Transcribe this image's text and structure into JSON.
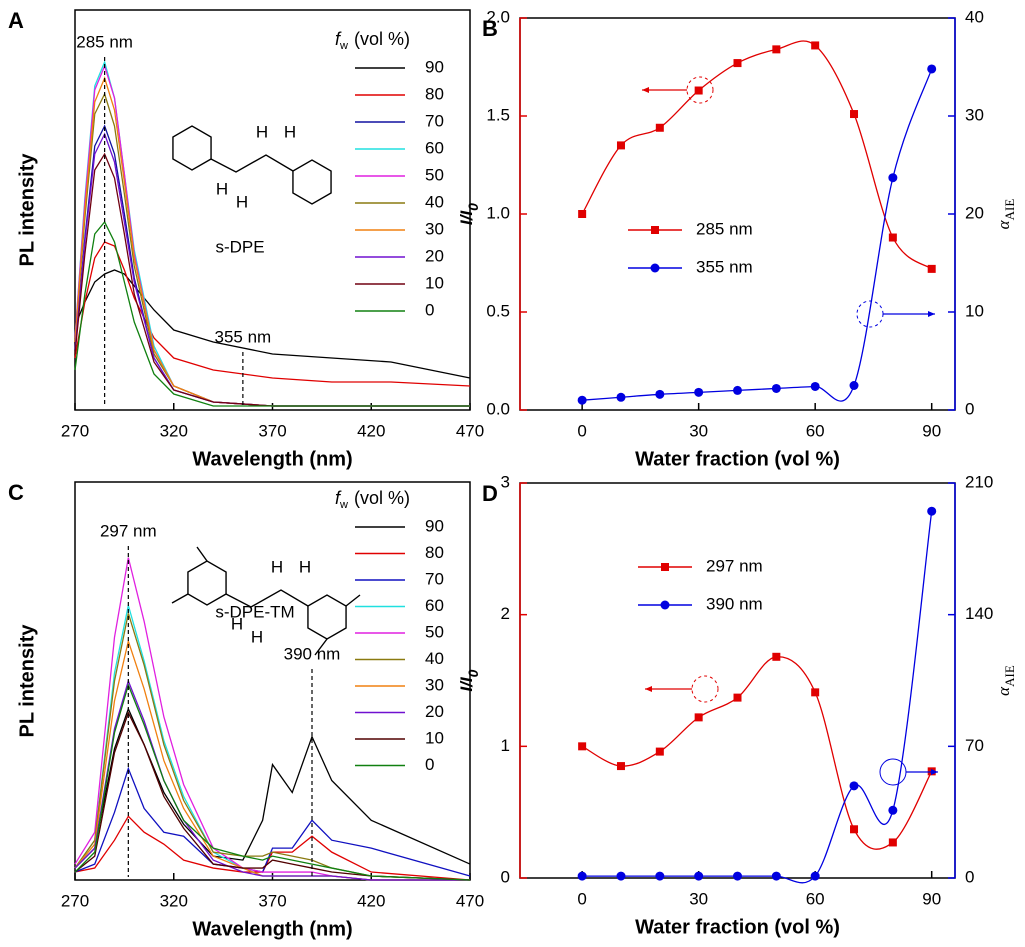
{
  "chart_data": [
    {
      "type": "line",
      "panel": "A",
      "x_label": "Wavelength (nm)",
      "y_label": "PL intensity",
      "x": [
        270,
        275,
        280,
        285,
        290,
        295,
        300,
        310,
        320,
        340,
        370,
        400,
        430,
        470
      ],
      "xlim": [
        270,
        470
      ],
      "xticks": [
        270,
        320,
        370,
        420,
        470
      ],
      "ylim": [
        0,
        100
      ],
      "legend_title": {
        "symbol": "f",
        "sub": "w",
        "unit": "(vol %)"
      },
      "annotations": [
        {
          "text": "285 nm",
          "x": 285
        },
        {
          "text": "355 nm",
          "x": 355
        }
      ],
      "molecule": "s-DPE",
      "structure_labels": [
        "H",
        "H",
        "H",
        "H"
      ],
      "series": [
        {
          "name": "90",
          "color": "#000000",
          "values": [
            21,
            27,
            32,
            34,
            35,
            34,
            31,
            25,
            20,
            17,
            14,
            13,
            12,
            8
          ]
        },
        {
          "name": "80",
          "color": "#e00000",
          "values": [
            13,
            27,
            38,
            42,
            41,
            35,
            28,
            18,
            13,
            10,
            8,
            7,
            7,
            6
          ]
        },
        {
          "name": "70",
          "color": "#1010a0",
          "values": [
            15,
            43,
            66,
            71,
            64,
            49,
            33,
            13,
            5,
            2,
            1,
            1,
            1,
            1
          ]
        },
        {
          "name": "60",
          "color": "#20e0e0",
          "values": [
            18,
            53,
            81,
            87,
            78,
            59,
            40,
            16,
            6,
            2,
            1,
            1,
            1,
            1
          ]
        },
        {
          "name": "50",
          "color": "#e020e0",
          "values": [
            18,
            52,
            80,
            86,
            78,
            59,
            39,
            15,
            6,
            2,
            1,
            1,
            1,
            1
          ]
        },
        {
          "name": "40",
          "color": "#8a7a10",
          "values": [
            17,
            48,
            74,
            79,
            71,
            54,
            36,
            14,
            6,
            2,
            1,
            1,
            1,
            1
          ]
        },
        {
          "name": "30",
          "color": "#f08010",
          "values": [
            17,
            50,
            77,
            83,
            75,
            57,
            38,
            15,
            6,
            2,
            1,
            1,
            1,
            1
          ]
        },
        {
          "name": "20",
          "color": "#7010d0",
          "values": [
            15,
            42,
            64,
            69,
            62,
            47,
            32,
            13,
            5,
            2,
            1,
            1,
            1,
            1
          ]
        },
        {
          "name": "10",
          "color": "#700010",
          "values": [
            14,
            39,
            60,
            64,
            58,
            44,
            29,
            12,
            5,
            2,
            1,
            1,
            1,
            1
          ]
        },
        {
          "name": "0",
          "color": "#108010",
          "values": [
            10,
            29,
            44,
            47,
            42,
            32,
            22,
            9,
            4,
            1,
            1,
            1,
            1,
            1
          ]
        }
      ]
    },
    {
      "type": "scatter",
      "panel": "B",
      "x_label": "Water fraction (vol %)",
      "y_label": "I/I",
      "y_label_sub": "0",
      "y2_label": "α",
      "y2_label_sub": "AIE",
      "x": [
        0,
        10,
        20,
        30,
        40,
        50,
        60,
        70,
        80,
        90
      ],
      "xlim": [
        -16,
        96
      ],
      "xticks": [
        0,
        30,
        60,
        90
      ],
      "ylim": [
        0,
        2
      ],
      "yticks": [
        {
          "value": 0,
          "label": "0.0"
        },
        {
          "value": 0.5,
          "label": "0.5"
        },
        {
          "value": 1,
          "label": "1.0"
        },
        {
          "value": 1.5,
          "label": "1.5"
        },
        {
          "value": 2,
          "label": "2.0"
        }
      ],
      "y2lim": [
        0,
        40
      ],
      "y2ticks": [
        0,
        10,
        20,
        30,
        40
      ],
      "series": [
        {
          "name": "285 nm",
          "color": "#e00000",
          "marker": "square",
          "values": [
            1.0,
            1.35,
            1.44,
            1.63,
            1.77,
            1.84,
            1.86,
            1.51,
            0.88,
            0.72
          ]
        },
        {
          "name": "355 nm",
          "color": "#0000e0",
          "marker": "circle",
          "axis": "y2",
          "values": [
            1.0,
            1.3,
            1.6,
            1.8,
            2.0,
            2.2,
            2.4,
            2.5,
            23.7,
            34.8
          ]
        }
      ]
    },
    {
      "type": "line",
      "panel": "C",
      "x_label": "Wavelength (nm)",
      "y_label": "PL intensity",
      "x": [
        270,
        280,
        290,
        297,
        305,
        315,
        325,
        340,
        355,
        365,
        370,
        380,
        390,
        400,
        420,
        470
      ],
      "xlim": [
        270,
        470
      ],
      "xticks": [
        270,
        320,
        370,
        420,
        470
      ],
      "ylim": [
        0,
        100
      ],
      "legend_title": {
        "symbol": "f",
        "sub": "w",
        "unit": "(vol %)"
      },
      "annotations": [
        {
          "text": "297 nm",
          "x": 297
        },
        {
          "text": "390 nm",
          "x": 390
        }
      ],
      "molecule": "s-DPE-TM",
      "structure_labels": [
        "H",
        "H",
        "H",
        "H"
      ],
      "series": [
        {
          "name": "90",
          "color": "#000000",
          "values": [
            3,
            8,
            33,
            43,
            34,
            22,
            14,
            6,
            5,
            15,
            29,
            22,
            36,
            25,
            15,
            4
          ]
        },
        {
          "name": "80",
          "color": "#e00000",
          "values": [
            2,
            3,
            10,
            16,
            12,
            9,
            5,
            3,
            2,
            2,
            7,
            7,
            11,
            7,
            2,
            0
          ]
        },
        {
          "name": "70",
          "color": "#1010c0",
          "values": [
            2,
            4,
            17,
            28,
            18,
            12,
            11,
            4,
            3,
            2,
            8,
            8,
            15,
            10,
            8,
            1
          ]
        },
        {
          "name": "60",
          "color": "#20e0e0",
          "values": [
            3,
            10,
            52,
            69,
            55,
            35,
            21,
            7,
            3,
            1,
            1,
            1,
            1,
            1,
            0,
            0
          ]
        },
        {
          "name": "50",
          "color": "#e020e0",
          "values": [
            4,
            12,
            61,
            81,
            65,
            41,
            24,
            8,
            3,
            2,
            2,
            2,
            2,
            1,
            0,
            0
          ]
        },
        {
          "name": "40",
          "color": "#8a7a10",
          "values": [
            3,
            10,
            50,
            67,
            54,
            34,
            20,
            7,
            6,
            6,
            7,
            6,
            5,
            3,
            1,
            0
          ]
        },
        {
          "name": "30",
          "color": "#f08010",
          "values": [
            3,
            9,
            45,
            60,
            48,
            30,
            18,
            6,
            3,
            1,
            1,
            1,
            1,
            1,
            0,
            0
          ]
        },
        {
          "name": "20",
          "color": "#7010d0",
          "values": [
            3,
            8,
            38,
            50,
            40,
            25,
            15,
            5,
            2,
            1,
            1,
            1,
            1,
            1,
            0,
            0
          ]
        },
        {
          "name": "10",
          "color": "#500000",
          "values": [
            2,
            6,
            32,
            42,
            34,
            21,
            13,
            4,
            3,
            3,
            5,
            4,
            3,
            2,
            1,
            0
          ]
        },
        {
          "name": "0",
          "color": "#108010",
          "values": [
            2,
            7,
            37,
            49,
            39,
            25,
            15,
            8,
            6,
            5,
            6,
            5,
            4,
            3,
            1,
            0
          ]
        }
      ]
    },
    {
      "type": "scatter",
      "panel": "D",
      "x_label": "Water fraction (vol %)",
      "y_label": "I/I",
      "y_label_sub": "0",
      "y2_label": "α",
      "y2_label_sub": "AIE",
      "x": [
        0,
        10,
        20,
        30,
        40,
        50,
        60,
        70,
        80,
        90
      ],
      "xlim": [
        -16,
        96
      ],
      "xticks": [
        0,
        30,
        60,
        90
      ],
      "ylim": [
        0,
        3
      ],
      "yticks": [
        0,
        1,
        2,
        3
      ],
      "y2lim": [
        0,
        210
      ],
      "y2ticks": [
        0,
        70,
        140,
        210
      ],
      "series": [
        {
          "name": "297 nm",
          "color": "#e00000",
          "marker": "square",
          "values": [
            1.0,
            0.85,
            0.96,
            1.22,
            1.37,
            1.68,
            1.41,
            0.37,
            0.27,
            0.81
          ]
        },
        {
          "name": "390 nm",
          "color": "#0000e0",
          "marker": "circle",
          "axis": "y2",
          "values": [
            1,
            1,
            1,
            1,
            1,
            1,
            1,
            49,
            36,
            195
          ]
        }
      ]
    }
  ]
}
